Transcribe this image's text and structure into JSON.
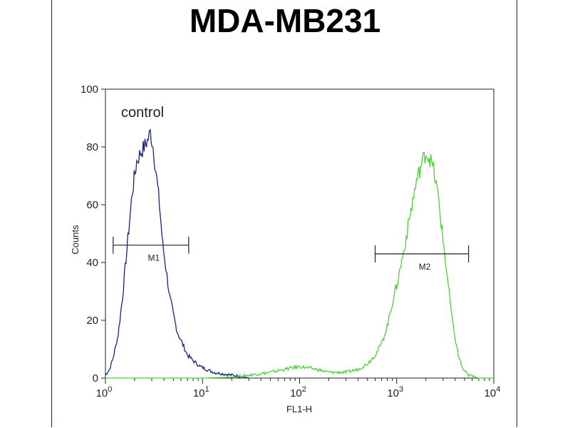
{
  "chart_data": {
    "type": "line",
    "title": "MDA-MB231",
    "xlabel": "FL1-H",
    "ylabel": "Counts",
    "xscale": "log",
    "xlim": [
      1,
      10000
    ],
    "ylim": [
      0,
      100
    ],
    "yticks": [
      0,
      20,
      40,
      60,
      80,
      100
    ],
    "xticks": [
      {
        "value": 1,
        "base": "10",
        "exp": "0"
      },
      {
        "value": 10,
        "base": "10",
        "exp": "1"
      },
      {
        "value": 100,
        "base": "10",
        "exp": "2"
      },
      {
        "value": 1000,
        "base": "10",
        "exp": "3"
      },
      {
        "value": 10000,
        "base": "10",
        "exp": "4"
      }
    ],
    "annotation": "control",
    "grid": false,
    "series": [
      {
        "color": "#1a237e",
        "x": [
          1.0,
          1.1,
          1.2,
          1.35,
          1.5,
          1.7,
          1.9,
          2.1,
          2.3,
          2.5,
          2.7,
          2.9,
          3.1,
          3.3,
          3.6,
          3.9,
          4.2,
          4.6,
          5.0,
          5.5,
          6.0,
          7.0,
          8.0,
          9.5,
          11,
          13,
          16,
          20,
          25,
          30
        ],
        "y": [
          1,
          3,
          7,
          15,
          28,
          48,
          65,
          75,
          78,
          80,
          82,
          85,
          80,
          72,
          60,
          46,
          38,
          28,
          22,
          16,
          13,
          8,
          6,
          4,
          3,
          2,
          1.5,
          1,
          0.5,
          0
        ]
      },
      {
        "color": "#4cd137",
        "x": [
          1.0,
          3.0,
          10,
          20,
          30,
          50,
          70,
          100,
          150,
          200,
          300,
          400,
          500,
          600,
          700,
          800,
          900,
          1000,
          1200,
          1400,
          1600,
          1800,
          2000,
          2200,
          2400,
          2700,
          3000,
          3400,
          3800,
          4300,
          4800,
          5500,
          7000,
          10000
        ],
        "y": [
          0,
          0,
          0,
          0.3,
          1,
          2,
          3,
          4,
          3,
          2,
          2,
          3,
          5,
          8,
          12,
          18,
          26,
          32,
          45,
          58,
          68,
          74,
          78,
          76,
          72,
          62,
          48,
          32,
          18,
          8,
          3,
          1,
          0,
          0
        ]
      }
    ],
    "markers": [
      {
        "label": "M1",
        "x_start": 1.2,
        "x_end": 7.2,
        "y": 46
      },
      {
        "label": "M2",
        "x_start": 600,
        "x_end": 5500,
        "y": 43
      }
    ]
  }
}
